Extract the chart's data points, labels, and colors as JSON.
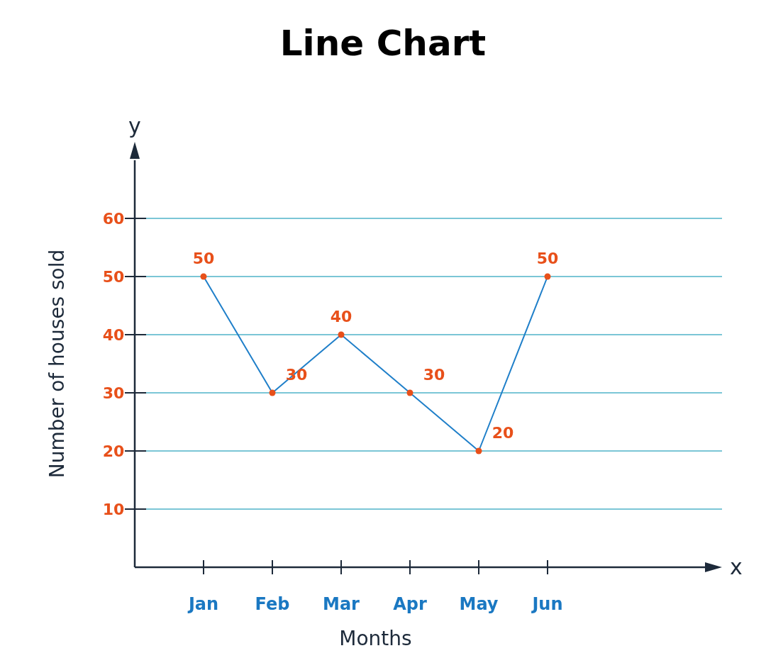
{
  "chart_data": {
    "type": "line",
    "title": "Line Chart",
    "xlabel": "Months",
    "ylabel": "Number of houses sold",
    "annotations": [
      "y",
      "x"
    ],
    "categories": [
      "Jan",
      "Feb",
      "Mar",
      "Apr",
      "May",
      "Jun"
    ],
    "series": [
      {
        "color": "#1f7fc9",
        "values": [
          50,
          30,
          40,
          30,
          20,
          50
        ]
      }
    ],
    "ylim": [
      0,
      70
    ],
    "yticks": [
      10,
      20,
      30,
      40,
      50,
      60
    ],
    "grid": "y",
    "marker": "circle",
    "data_labels": true
  }
}
